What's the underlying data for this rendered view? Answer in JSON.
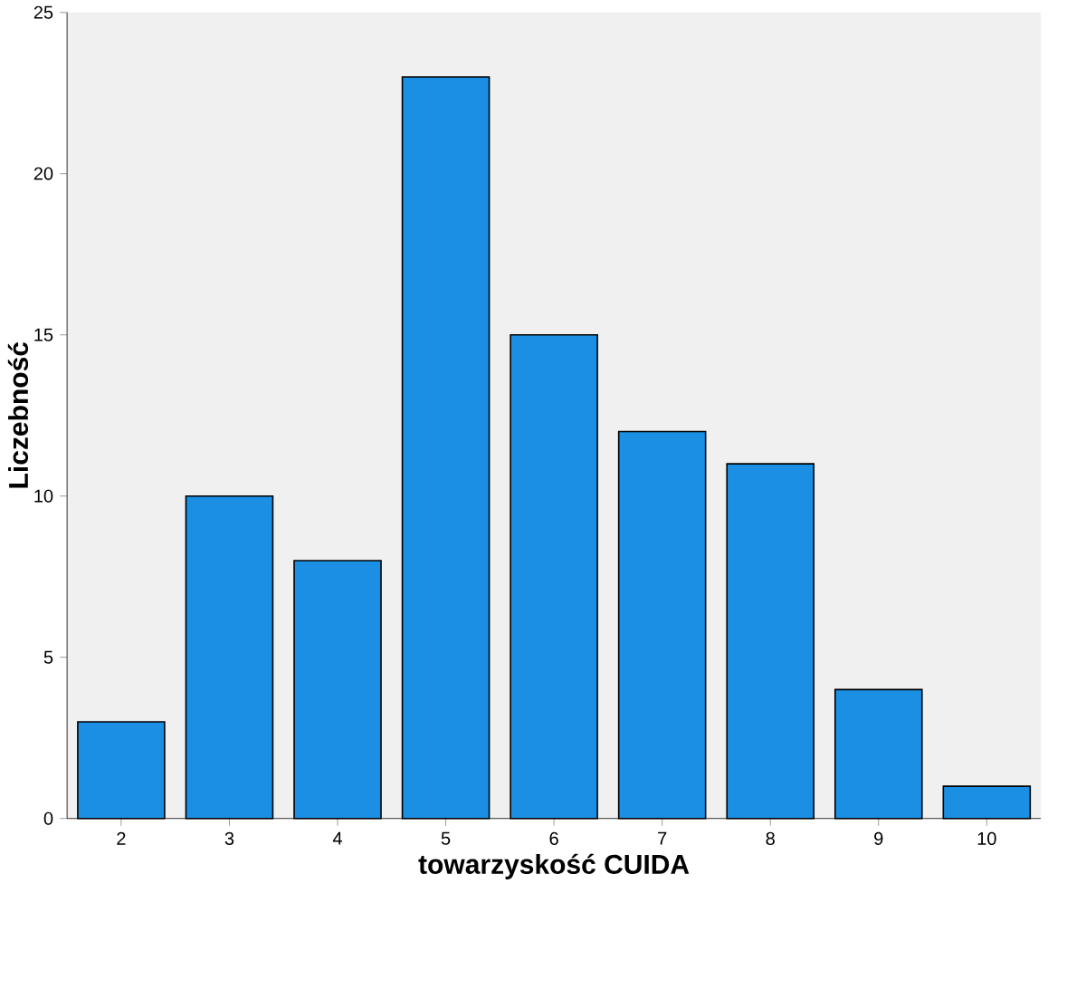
{
  "chart_data": {
    "type": "bar",
    "xlabel": "towarzyskość CUIDA",
    "ylabel": "Liczebność",
    "categories": [
      "2",
      "3",
      "4",
      "5",
      "6",
      "7",
      "8",
      "9",
      "10"
    ],
    "values": [
      3,
      10,
      8,
      23,
      15,
      12,
      11,
      4,
      1
    ],
    "color": "#1a8fe3",
    "ylim": [
      0,
      25
    ],
    "yticks": [
      0,
      5,
      10,
      15,
      20,
      25
    ],
    "grid": false
  }
}
